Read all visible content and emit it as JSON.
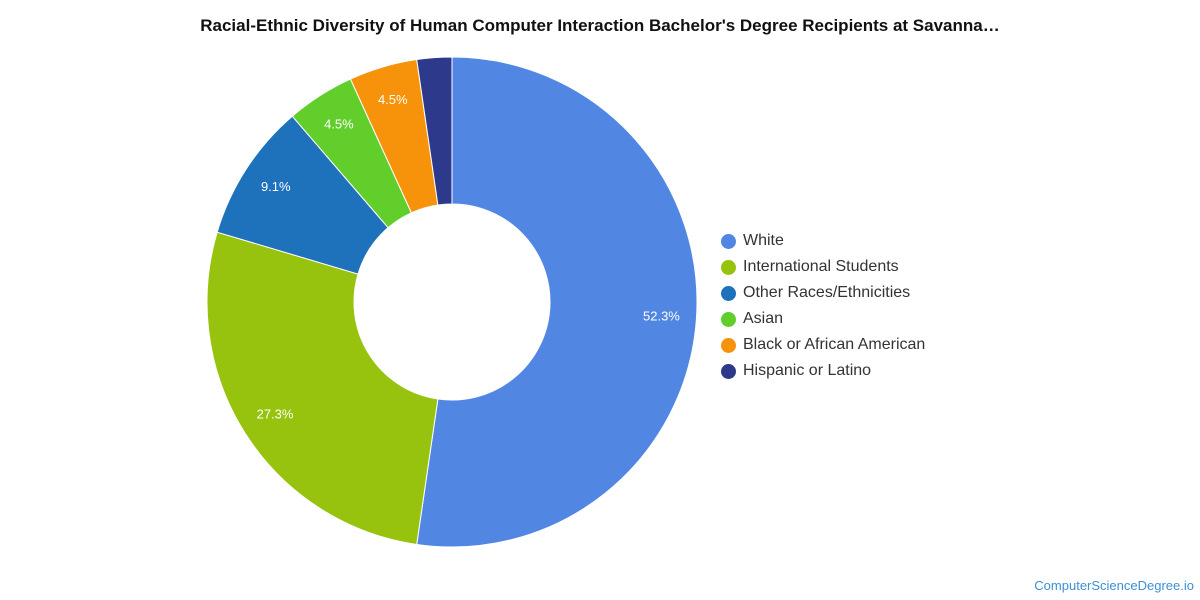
{
  "title": "Racial-Ethnic Diversity of Human Computer Interaction Bachelor's Degree Recipients at Savanna…",
  "credit": "ComputerScienceDegree.io",
  "chart_data": {
    "type": "pie",
    "variant": "donut",
    "title": "Racial-Ethnic Diversity of Human Computer Interaction Bachelor's Degree Recipients at Savanna…",
    "legend_position": "right",
    "slices": [
      {
        "name": "White",
        "value": 52.3,
        "label": "52.3%",
        "color": "#5286e3"
      },
      {
        "name": "International Students",
        "value": 27.3,
        "label": "27.3%",
        "color": "#97c30e"
      },
      {
        "name": "Other Races/Ethnicities",
        "value": 9.1,
        "label": "9.1%",
        "color": "#1e72bc"
      },
      {
        "name": "Asian",
        "value": 4.5,
        "label": "4.5%",
        "color": "#62ce2b"
      },
      {
        "name": "Black or African American",
        "value": 4.5,
        "label": "4.5%",
        "color": "#f7930b"
      },
      {
        "name": "Hispanic or Latino",
        "value": 2.3,
        "label": "",
        "color": "#2d3a8c"
      }
    ]
  }
}
